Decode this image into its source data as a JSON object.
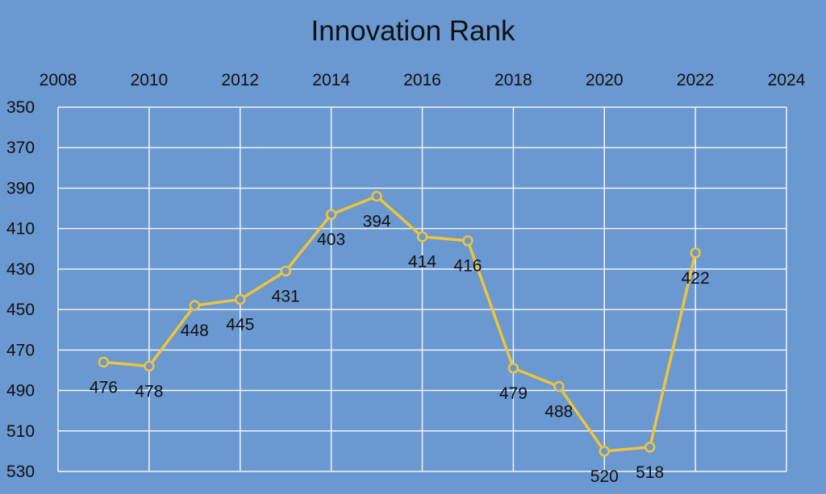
{
  "chart_data": {
    "type": "scatter",
    "title": "Innovation Rank",
    "xlabel": "",
    "ylabel": "",
    "xlim": [
      2008,
      2024
    ],
    "ylim": [
      530,
      350
    ],
    "y_reversed": true,
    "x_axis_position": "top",
    "x_ticks": [
      2008,
      2010,
      2012,
      2014,
      2016,
      2018,
      2020,
      2022,
      2024
    ],
    "y_ticks": [
      350,
      370,
      390,
      410,
      430,
      450,
      470,
      490,
      510,
      530
    ],
    "grid": true,
    "legend": "none",
    "series": [
      {
        "x": [
          2009,
          2010,
          2011,
          2012,
          2013,
          2014,
          2015,
          2016,
          2017,
          2018,
          2019,
          2020,
          2021,
          2022
        ],
        "values": [
          476,
          478,
          448,
          445,
          431,
          403,
          394,
          414,
          416,
          479,
          488,
          520,
          518,
          422
        ],
        "data_labels": [
          "476",
          "478",
          "448",
          "445",
          "431",
          "403",
          "394",
          "414",
          "416",
          "479",
          "488",
          "520",
          "518",
          "422"
        ],
        "color": "#f0c43a",
        "markers": "hollow circle"
      }
    ],
    "colors": {
      "background": "#6a98d0",
      "grid": "#f2f5fa",
      "line": "#f0c43a"
    }
  }
}
